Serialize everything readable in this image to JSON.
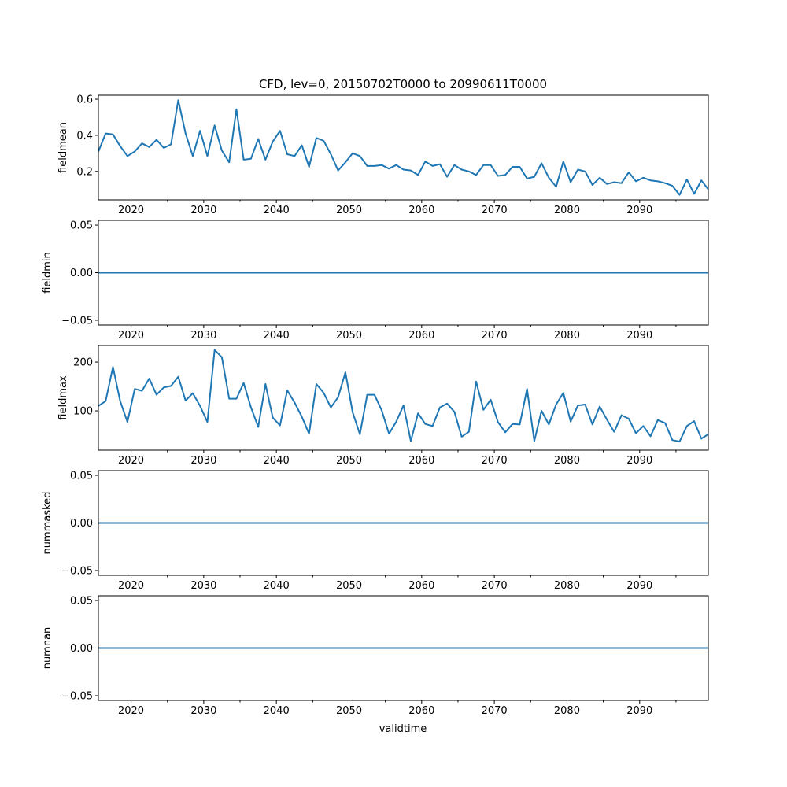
{
  "chart_data": {
    "type": "line",
    "title": "CFD, lev=0, 20150702T0000 to 20990611T0000",
    "xlabel": "validtime",
    "xlim": [
      2015.5,
      2099.45
    ],
    "xticks": [
      2020,
      2030,
      2040,
      2050,
      2060,
      2070,
      2080,
      2090
    ],
    "xtick_labels": [
      "2020",
      "2030",
      "2040",
      "2050",
      "2060",
      "2070",
      "2080",
      "2090"
    ],
    "x_minor_ticks": [
      2025,
      2035,
      2045,
      2055,
      2065,
      2075,
      2085,
      2095
    ],
    "color": "#1f77b4",
    "x": [
      2015.5,
      2016.5,
      2017.5,
      2018.5,
      2019.5,
      2020.5,
      2021.5,
      2022.5,
      2023.5,
      2024.5,
      2025.5,
      2026.5,
      2027.5,
      2028.5,
      2029.5,
      2030.5,
      2031.5,
      2032.5,
      2033.5,
      2034.5,
      2035.5,
      2036.5,
      2037.5,
      2038.5,
      2039.5,
      2040.5,
      2041.5,
      2042.5,
      2043.5,
      2044.5,
      2045.5,
      2046.5,
      2047.5,
      2048.5,
      2049.5,
      2050.5,
      2051.5,
      2052.5,
      2053.5,
      2054.5,
      2055.5,
      2056.5,
      2057.5,
      2058.5,
      2059.5,
      2060.5,
      2061.5,
      2062.5,
      2063.5,
      2064.5,
      2065.5,
      2066.5,
      2067.5,
      2068.5,
      2069.5,
      2070.5,
      2071.5,
      2072.5,
      2073.5,
      2074.5,
      2075.5,
      2076.5,
      2077.5,
      2078.5,
      2079.5,
      2080.5,
      2081.5,
      2082.5,
      2083.5,
      2084.5,
      2085.5,
      2086.5,
      2087.5,
      2088.5,
      2089.5,
      2090.5,
      2091.5,
      2092.5,
      2093.5,
      2094.5,
      2095.5,
      2096.5,
      2097.5,
      2098.5,
      2099.45
    ],
    "panels": [
      {
        "ylabel": "fieldmean",
        "ylim": [
          0.042,
          0.622
        ],
        "yticks": [
          0.2,
          0.4,
          0.6
        ],
        "ytick_labels": [
          "0.2",
          "0.4",
          "0.6"
        ],
        "values": [
          0.31,
          0.41,
          0.405,
          0.34,
          0.285,
          0.31,
          0.355,
          0.335,
          0.375,
          0.33,
          0.35,
          0.595,
          0.41,
          0.285,
          0.425,
          0.285,
          0.455,
          0.315,
          0.25,
          0.545,
          0.265,
          0.27,
          0.38,
          0.265,
          0.365,
          0.425,
          0.295,
          0.285,
          0.345,
          0.225,
          0.385,
          0.37,
          0.295,
          0.205,
          0.25,
          0.3,
          0.285,
          0.23,
          0.23,
          0.235,
          0.215,
          0.235,
          0.21,
          0.205,
          0.18,
          0.255,
          0.23,
          0.24,
          0.17,
          0.235,
          0.21,
          0.2,
          0.18,
          0.235,
          0.235,
          0.175,
          0.18,
          0.225,
          0.225,
          0.16,
          0.17,
          0.245,
          0.165,
          0.115,
          0.255,
          0.14,
          0.21,
          0.2,
          0.125,
          0.165,
          0.13,
          0.14,
          0.135,
          0.195,
          0.145,
          0.165,
          0.15,
          0.145,
          0.135,
          0.12,
          0.07,
          0.155,
          0.075,
          0.15,
          0.1
        ]
      },
      {
        "ylabel": "fieldmin",
        "ylim": [
          -0.055,
          0.055
        ],
        "yticks": [
          -0.05,
          0.0,
          0.05
        ],
        "ytick_labels": [
          "−0.05",
          "0.00",
          "0.05"
        ],
        "values": [
          0,
          0,
          0,
          0,
          0,
          0,
          0,
          0,
          0,
          0,
          0,
          0,
          0,
          0,
          0,
          0,
          0,
          0,
          0,
          0,
          0,
          0,
          0,
          0,
          0,
          0,
          0,
          0,
          0,
          0,
          0,
          0,
          0,
          0,
          0,
          0,
          0,
          0,
          0,
          0,
          0,
          0,
          0,
          0,
          0,
          0,
          0,
          0,
          0,
          0,
          0,
          0,
          0,
          0,
          0,
          0,
          0,
          0,
          0,
          0,
          0,
          0,
          0,
          0,
          0,
          0,
          0,
          0,
          0,
          0,
          0,
          0,
          0,
          0,
          0,
          0,
          0,
          0,
          0,
          0,
          0,
          0,
          0,
          0,
          0
        ]
      },
      {
        "ylabel": "fieldmax",
        "ylim": [
          19.4,
          234
        ],
        "yticks": [
          100,
          200
        ],
        "ytick_labels": [
          "100",
          "200"
        ],
        "values": [
          110,
          120,
          190,
          120,
          77,
          145,
          141,
          166,
          133,
          148,
          151,
          170,
          121,
          136,
          110,
          77,
          225,
          210,
          125,
          125,
          157,
          107,
          67,
          155,
          86,
          70,
          142,
          117,
          88,
          53,
          155,
          137,
          107,
          128,
          179,
          97,
          52,
          133,
          133,
          101,
          53,
          78,
          111,
          38,
          95,
          73,
          69,
          107,
          115,
          98,
          47,
          57,
          160,
          102,
          123,
          77,
          56,
          73,
          72,
          145,
          38,
          100,
          72,
          113,
          137,
          78,
          111,
          113,
          72,
          109,
          82,
          57,
          91,
          84,
          54,
          69,
          48,
          81,
          75,
          40,
          37,
          69,
          79,
          43,
          52
        ]
      },
      {
        "ylabel": "nummasked",
        "ylim": [
          -0.055,
          0.055
        ],
        "yticks": [
          -0.05,
          0.0,
          0.05
        ],
        "ytick_labels": [
          "−0.05",
          "0.00",
          "0.05"
        ],
        "values": [
          0,
          0,
          0,
          0,
          0,
          0,
          0,
          0,
          0,
          0,
          0,
          0,
          0,
          0,
          0,
          0,
          0,
          0,
          0,
          0,
          0,
          0,
          0,
          0,
          0,
          0,
          0,
          0,
          0,
          0,
          0,
          0,
          0,
          0,
          0,
          0,
          0,
          0,
          0,
          0,
          0,
          0,
          0,
          0,
          0,
          0,
          0,
          0,
          0,
          0,
          0,
          0,
          0,
          0,
          0,
          0,
          0,
          0,
          0,
          0,
          0,
          0,
          0,
          0,
          0,
          0,
          0,
          0,
          0,
          0,
          0,
          0,
          0,
          0,
          0,
          0,
          0,
          0,
          0,
          0,
          0,
          0,
          0,
          0,
          0
        ]
      },
      {
        "ylabel": "numnan",
        "ylim": [
          -0.055,
          0.055
        ],
        "yticks": [
          -0.05,
          0.0,
          0.05
        ],
        "ytick_labels": [
          "−0.05",
          "0.00",
          "0.05"
        ],
        "values": [
          0,
          0,
          0,
          0,
          0,
          0,
          0,
          0,
          0,
          0,
          0,
          0,
          0,
          0,
          0,
          0,
          0,
          0,
          0,
          0,
          0,
          0,
          0,
          0,
          0,
          0,
          0,
          0,
          0,
          0,
          0,
          0,
          0,
          0,
          0,
          0,
          0,
          0,
          0,
          0,
          0,
          0,
          0,
          0,
          0,
          0,
          0,
          0,
          0,
          0,
          0,
          0,
          0,
          0,
          0,
          0,
          0,
          0,
          0,
          0,
          0,
          0,
          0,
          0,
          0,
          0,
          0,
          0,
          0,
          0,
          0,
          0,
          0,
          0,
          0,
          0,
          0,
          0,
          0,
          0,
          0,
          0,
          0,
          0,
          0
        ]
      }
    ]
  }
}
